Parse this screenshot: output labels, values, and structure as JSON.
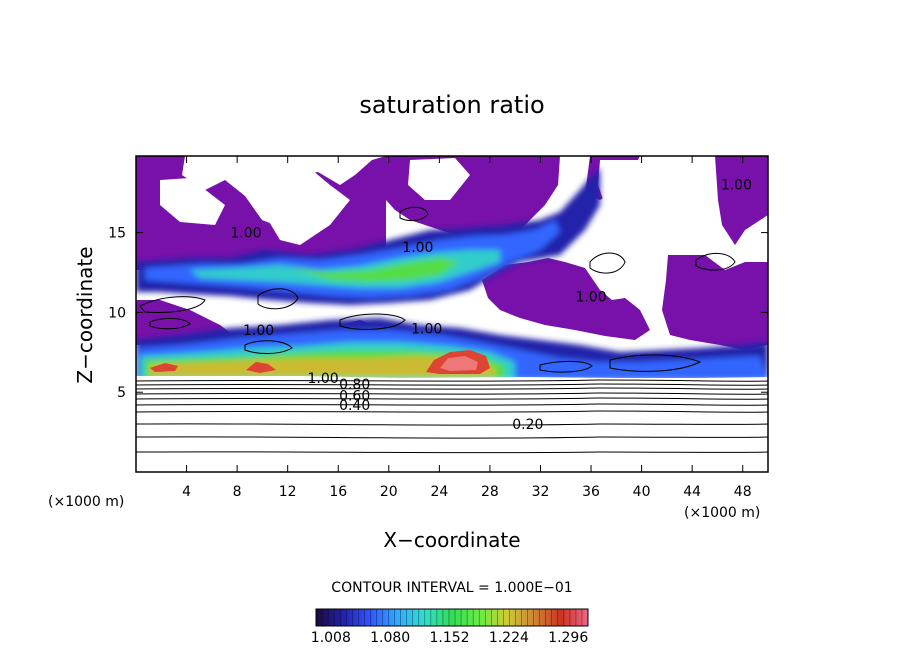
{
  "chart_data": {
    "type": "heatmap",
    "title": "saturation ratio",
    "xlabel": "X−coordinate",
    "ylabel": "Z−coordinate",
    "x_unit": "(×1000 m)",
    "y_unit": "(×1000 m)",
    "xlim": [
      0,
      50
    ],
    "ylim": [
      0,
      19.8
    ],
    "x_ticks": [
      4,
      8,
      12,
      16,
      20,
      24,
      28,
      32,
      36,
      40,
      44,
      48
    ],
    "y_ticks": [
      5,
      10,
      15
    ],
    "contour_interval_label": "CONTOUR INTERVAL = 1.000E−01",
    "colorbar_ticks": [
      "1.008",
      "1.080",
      "1.152",
      "1.224",
      "1.296"
    ],
    "colorbar_range": [
      0.99,
      1.32
    ],
    "colorbar_colors": [
      "#1a0b3b",
      "#2222aa",
      "#3355ff",
      "#33aaff",
      "#33ddcc",
      "#33dd55",
      "#66ee44",
      "#cccc33",
      "#cc8833",
      "#cc3322",
      "#ee6688"
    ],
    "contour_labels": [
      {
        "text": "0.20",
        "x": 31.0,
        "y": 3.0
      },
      {
        "text": "0.40",
        "x": 17.3,
        "y": 4.2
      },
      {
        "text": "0.60",
        "x": 17.3,
        "y": 4.8
      },
      {
        "text": "0.80",
        "x": 17.3,
        "y": 5.5
      },
      {
        "text": "1.00",
        "x": 14.8,
        "y": 5.9
      },
      {
        "text": "1.00",
        "x": 9.7,
        "y": 8.9
      },
      {
        "text": "1.00",
        "x": 23.0,
        "y": 9.0
      },
      {
        "text": "1.00",
        "x": 22.3,
        "y": 14.1
      },
      {
        "text": "1.00",
        "x": 8.7,
        "y": 15.0
      },
      {
        "text": "1.00",
        "x": 36.0,
        "y": 11.0
      },
      {
        "text": "1.00",
        "x": 47.5,
        "y": 18.0
      }
    ],
    "supersaturated_regions": [
      {
        "level": 1.02,
        "x": [
          0,
          50
        ],
        "y": [
          12.0,
          19.8
        ]
      },
      {
        "level": 1.1,
        "x": [
          0,
          30
        ],
        "y": [
          10.5,
          13.0
        ]
      },
      {
        "level": 1.1,
        "x": [
          0,
          40
        ],
        "y": [
          6.0,
          8.8
        ]
      },
      {
        "level": 1.3,
        "x": [
          23.5,
          28.0
        ],
        "y": [
          6.5,
          7.8
        ]
      },
      {
        "level": 1.3,
        "x": [
          8.7,
          10.7
        ],
        "y": [
          6.3,
          6.9
        ]
      },
      {
        "level": 1.3,
        "x": [
          2.3,
          4.0
        ],
        "y": [
          6.3,
          6.8
        ]
      }
    ]
  }
}
